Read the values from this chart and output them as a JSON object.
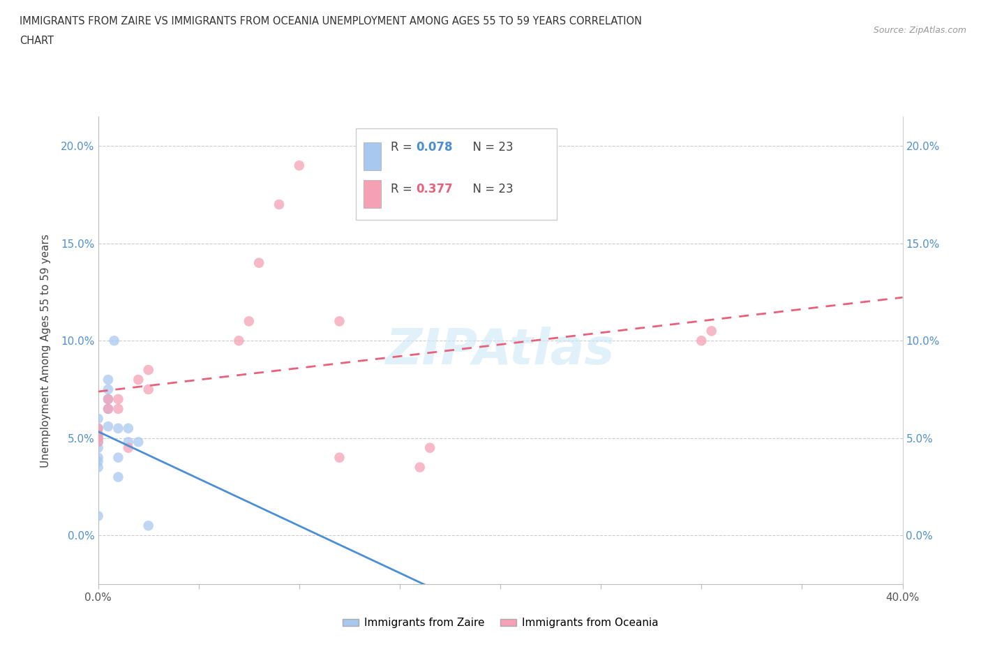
{
  "title_line1": "IMMIGRANTS FROM ZAIRE VS IMMIGRANTS FROM OCEANIA UNEMPLOYMENT AMONG AGES 55 TO 59 YEARS CORRELATION",
  "title_line2": "CHART",
  "source_text": "Source: ZipAtlas.com",
  "ylabel": "Unemployment Among Ages 55 to 59 years",
  "xlim": [
    0.0,
    0.4
  ],
  "ylim": [
    -0.025,
    0.215
  ],
  "yticks": [
    0.0,
    0.05,
    0.1,
    0.15,
    0.2
  ],
  "ytick_labels": [
    "0.0%",
    "5.0%",
    "10.0%",
    "15.0%",
    "20.0%"
  ],
  "xticks": [
    0.0,
    0.05,
    0.1,
    0.15,
    0.2,
    0.25,
    0.3,
    0.35,
    0.4
  ],
  "xtick_labels": [
    "0.0%",
    "",
    "",
    "",
    "",
    "",
    "",
    "",
    "40.0%"
  ],
  "zaire_color": "#a8c8f0",
  "oceania_color": "#f5a0b5",
  "zaire_line_color": "#4a8fd4",
  "oceania_line_color": "#e8607a",
  "watermark": "ZIPAtlas",
  "legend_R_zaire": "R = 0.078",
  "legend_N_zaire": "N = 23",
  "legend_R_oceania": "R = 0.377",
  "legend_N_oceania": "N = 23",
  "zaire_x": [
    0.0,
    0.0,
    0.0,
    0.0,
    0.0,
    0.0,
    0.0,
    0.0,
    0.0,
    0.0,
    0.005,
    0.005,
    0.005,
    0.005,
    0.005,
    0.008,
    0.01,
    0.01,
    0.01,
    0.015,
    0.015,
    0.02,
    0.025
  ],
  "zaire_y": [
    0.06,
    0.055,
    0.052,
    0.05,
    0.048,
    0.045,
    0.04,
    0.038,
    0.035,
    0.01,
    0.08,
    0.075,
    0.07,
    0.065,
    0.056,
    0.1,
    0.055,
    0.04,
    0.03,
    0.055,
    0.048,
    0.048,
    0.005
  ],
  "oceania_x": [
    0.0,
    0.0,
    0.0,
    0.0,
    0.005,
    0.005,
    0.01,
    0.01,
    0.015,
    0.02,
    0.025,
    0.025,
    0.07,
    0.075,
    0.08,
    0.09,
    0.1,
    0.12,
    0.12,
    0.16,
    0.165,
    0.3,
    0.305
  ],
  "oceania_y": [
    0.055,
    0.052,
    0.05,
    0.048,
    0.07,
    0.065,
    0.07,
    0.065,
    0.045,
    0.08,
    0.085,
    0.075,
    0.1,
    0.11,
    0.14,
    0.17,
    0.19,
    0.11,
    0.04,
    0.035,
    0.045,
    0.1,
    0.105
  ]
}
